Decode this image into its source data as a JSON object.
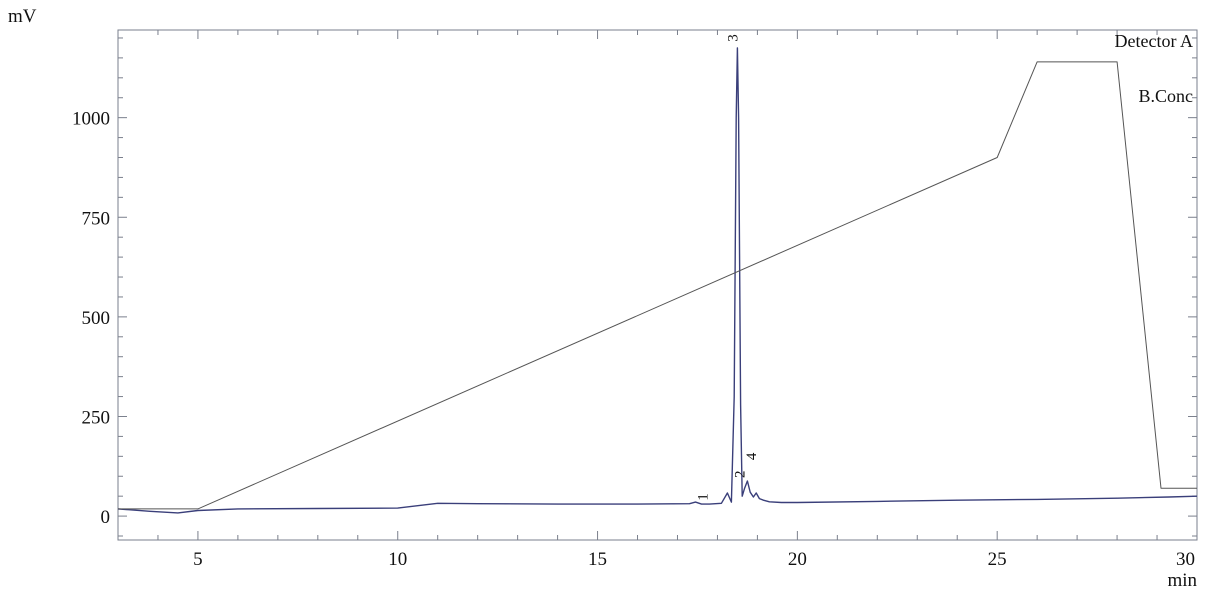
{
  "chart_data": {
    "type": "line",
    "xlabel": "min",
    "ylabel": "mV",
    "xlim": [
      3,
      30
    ],
    "ylim": [
      -60,
      1220
    ],
    "x_ticks": [
      5,
      10,
      15,
      20,
      25,
      30
    ],
    "y_ticks": [
      0,
      250,
      500,
      750,
      1000
    ],
    "grid": false,
    "legend": [
      "Detector A",
      "B.Conc"
    ],
    "colors": {
      "detector": "#3a3f7a",
      "conc": "#555555",
      "frame": "#7a7f8c"
    },
    "series": [
      {
        "name": "Detector A",
        "x": [
          3.0,
          3.8,
          4.5,
          5.0,
          6,
          8,
          10.0,
          10.5,
          11.0,
          12,
          14,
          16,
          17.3,
          17.45,
          17.6,
          17.8,
          18.1,
          18.25,
          18.35,
          18.42,
          18.47,
          18.5,
          18.53,
          18.58,
          18.62,
          18.68,
          18.75,
          18.82,
          18.9,
          18.97,
          19.05,
          19.15,
          19.3,
          19.6,
          20,
          22,
          24,
          26,
          28,
          29.3,
          30.0
        ],
        "y": [
          18,
          12,
          8,
          14,
          18,
          19,
          20,
          26,
          32,
          31,
          30,
          30,
          31,
          35,
          30,
          30,
          32,
          58,
          35,
          300,
          1000,
          1175,
          1000,
          280,
          50,
          70,
          88,
          60,
          48,
          58,
          44,
          40,
          36,
          34,
          34,
          37,
          40,
          42,
          45,
          48,
          50
        ]
      },
      {
        "name": "B.Conc",
        "x": [
          3.0,
          5.0,
          25.0,
          26.0,
          28.0,
          29.1,
          30.0
        ],
        "y": [
          18,
          18,
          900,
          1140,
          1140,
          70,
          70
        ]
      }
    ],
    "annotations": [
      {
        "text": "1",
        "x": 17.75,
        "y": 48
      },
      {
        "text": "2",
        "x": 18.68,
        "y": 105
      },
      {
        "text": "3",
        "x": 18.5,
        "y": 1200
      },
      {
        "text": "4",
        "x": 18.97,
        "y": 150
      }
    ]
  }
}
